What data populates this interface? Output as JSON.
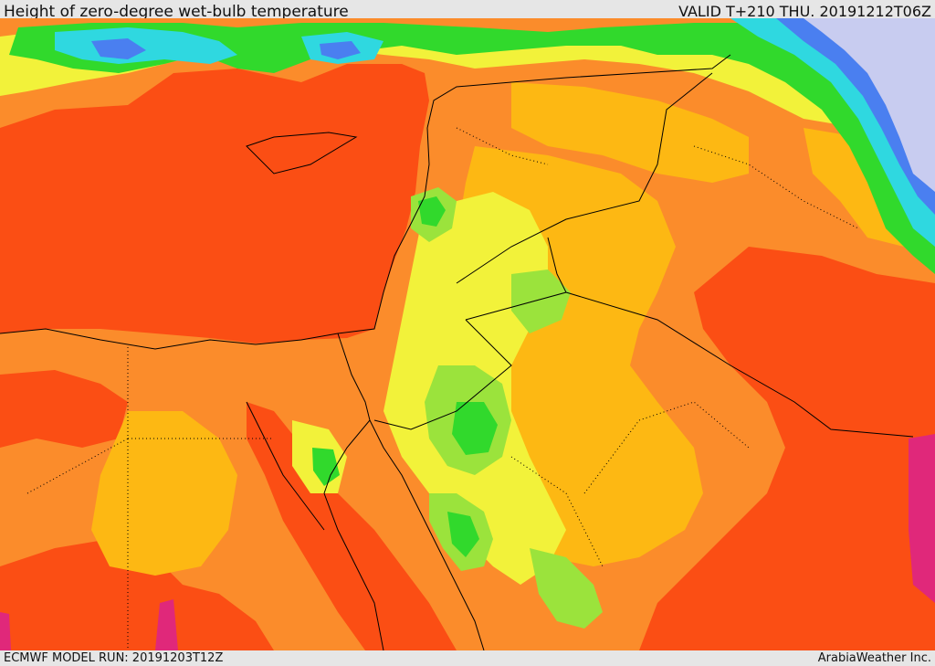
{
  "header": {
    "title": "Height of zero-degree wet-bulb temperature",
    "valid": "VALID T+210 THU. 20191212T06Z"
  },
  "footer": {
    "model_run": "ECMWF MODEL RUN: 20191203T12Z",
    "credit": "ArabiaWeather Inc."
  },
  "palette": {
    "dark_red": "#fb4e14",
    "orange": "#fb8c2b",
    "amber": "#fdb813",
    "yellow": "#f2f23a",
    "lime": "#9be33c",
    "green": "#31d92c",
    "cyan": "#2fd8e0",
    "blue": "#4a7ff0",
    "lavender": "#c8ccf0",
    "magenta": "#e0287a"
  }
}
